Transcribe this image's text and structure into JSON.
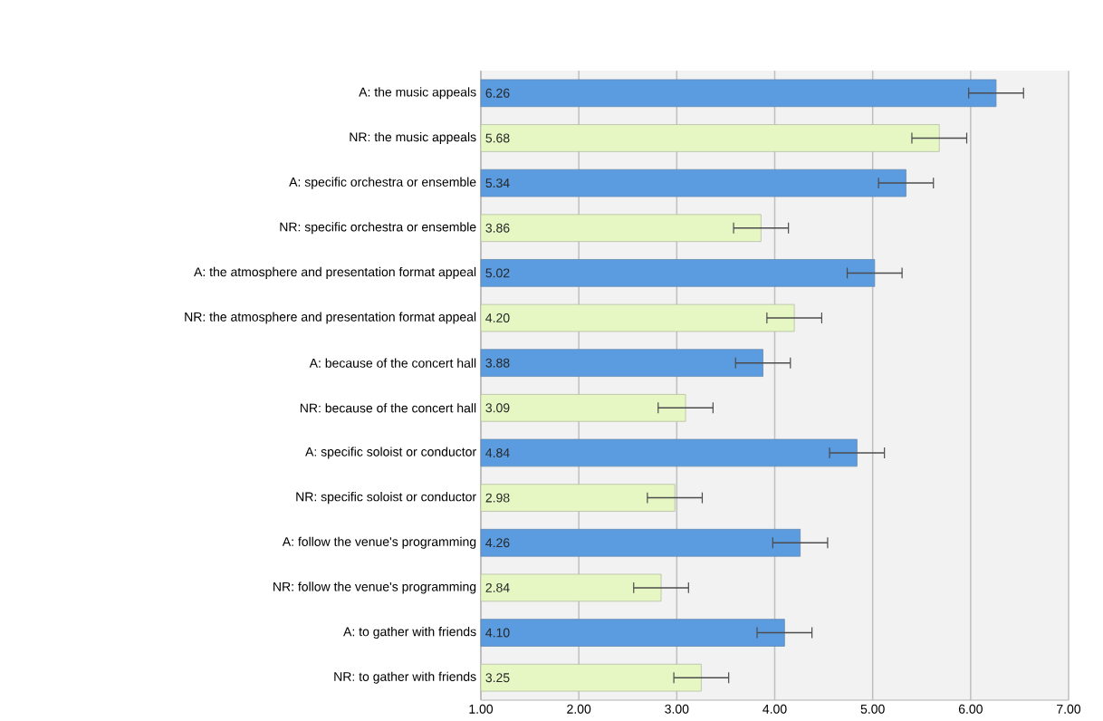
{
  "chart_data": {
    "type": "bar",
    "orientation": "horizontal",
    "categories": [
      "A: the music appeals",
      "NR: the music appeals",
      "A: specific orchestra or ensemble",
      "NR: specific orchestra or ensemble",
      "A: the atmosphere and presentation format appeal",
      "NR: the atmosphere and presentation format appeal",
      "A: because of the concert hall",
      "NR: because of the concert hall",
      "A: specific soloist or conductor",
      "NR: specific soloist or conductor",
      "A: follow the venue's programming",
      "NR: follow the venue's programming",
      "A: to gather with friends",
      "NR: to gather with friends"
    ],
    "values": [
      6.26,
      5.68,
      5.34,
      3.86,
      5.02,
      4.2,
      3.88,
      3.09,
      4.84,
      2.98,
      4.26,
      2.84,
      4.1,
      3.25
    ],
    "value_labels": [
      "6.26",
      "5.68",
      "5.34",
      "3.86",
      "5.02",
      "4.20",
      "3.88",
      "3.09",
      "4.84",
      "2.98",
      "4.26",
      "2.84",
      "4.10",
      "3.25"
    ],
    "errors": [
      0.28,
      0.28,
      0.28,
      0.28,
      0.28,
      0.28,
      0.28,
      0.28,
      0.28,
      0.28,
      0.28,
      0.28,
      0.28,
      0.28
    ],
    "colors": [
      "#5b9be0",
      "#e6f7c4",
      "#5b9be0",
      "#e6f7c4",
      "#5b9be0",
      "#e6f7c4",
      "#5b9be0",
      "#e6f7c4",
      "#5b9be0",
      "#e6f7c4",
      "#5b9be0",
      "#e6f7c4",
      "#5b9be0",
      "#e6f7c4"
    ],
    "xlim": [
      1,
      7
    ],
    "xticks": [
      {
        "value": 1,
        "label": "1.00"
      },
      {
        "value": 2,
        "label": "2.00"
      },
      {
        "value": 3,
        "label": "3.00"
      },
      {
        "value": 4,
        "label": "4.00"
      },
      {
        "value": 5,
        "label": "5.00"
      },
      {
        "value": 6,
        "label": "6.00"
      },
      {
        "value": 7,
        "label": "7.00"
      }
    ],
    "grid": "x"
  }
}
